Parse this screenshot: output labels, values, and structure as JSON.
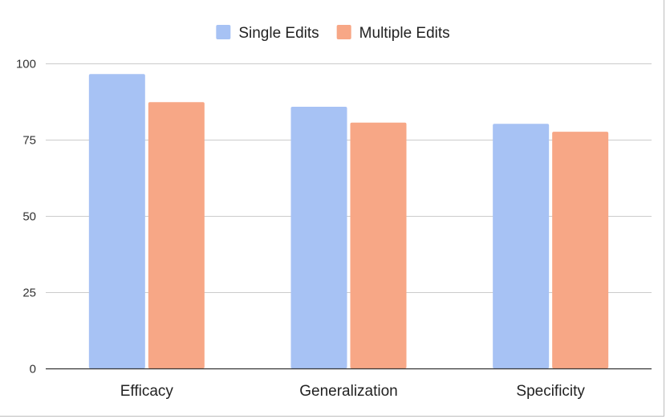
{
  "chart_data": {
    "type": "bar",
    "categories": [
      "Efficacy",
      "Generalization",
      "Specificity"
    ],
    "series": [
      {
        "name": "Single Edits",
        "values": [
          96.5,
          85.8,
          80.2
        ],
        "color": "#a7c2f4"
      },
      {
        "name": "Multiple Edits",
        "values": [
          87.3,
          80.6,
          77.6
        ],
        "color": "#f7a786"
      }
    ],
    "ylim": [
      0,
      100
    ],
    "yticks": [
      0,
      25,
      50,
      75,
      100
    ],
    "grid": true,
    "legend": "top-center",
    "title": "",
    "xlabel": "",
    "ylabel": ""
  }
}
